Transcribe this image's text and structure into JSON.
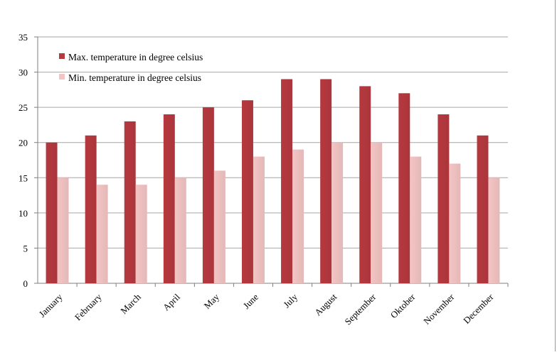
{
  "chart_data": {
    "type": "bar",
    "categories": [
      "January",
      "February",
      "March",
      "April",
      "May",
      "June",
      "July",
      "August",
      "September",
      "Oktober",
      "November",
      "December"
    ],
    "series": [
      {
        "name": "Max. temperature in degree celsius",
        "values": [
          20,
          21,
          23,
          24,
          25,
          26,
          29,
          29,
          28,
          27,
          24,
          21
        ],
        "color": "#b5393f"
      },
      {
        "name": "Min. temperature in degree celsius",
        "values": [
          15,
          14,
          14,
          15,
          16,
          18,
          19,
          20,
          20,
          18,
          17,
          15
        ],
        "color": "#f3c4c4"
      }
    ],
    "yticks": [
      "0",
      "5",
      "10",
      "15",
      "20",
      "25",
      "30",
      "35"
    ],
    "ylim": [
      0,
      35
    ],
    "grid": true,
    "legend_position": "top-left"
  }
}
